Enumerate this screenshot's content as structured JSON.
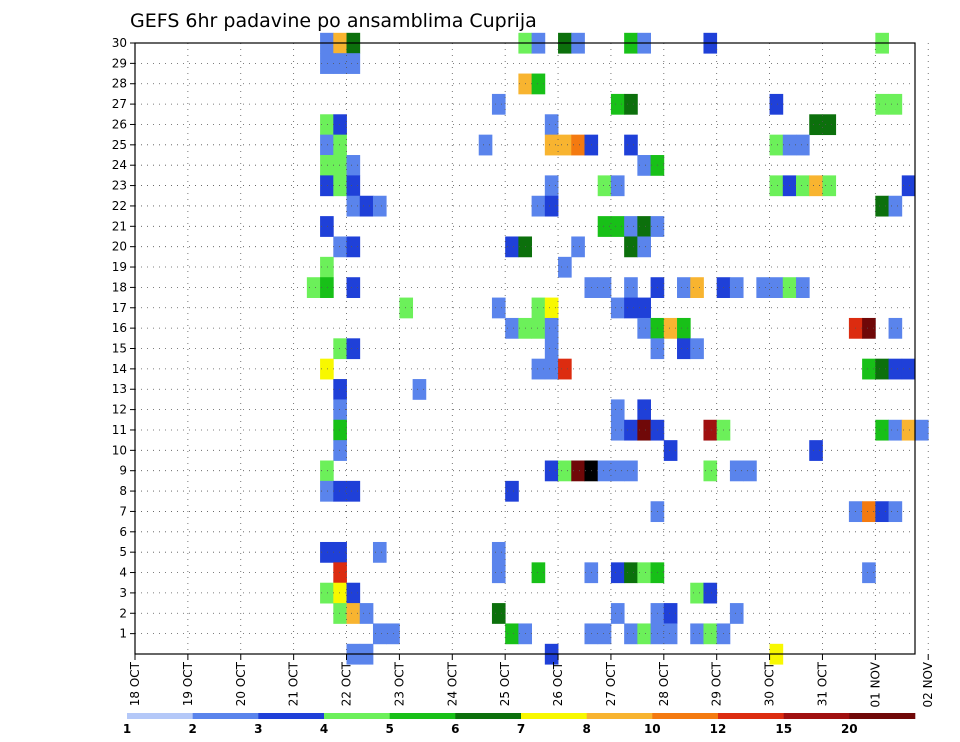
{
  "chart_data": {
    "type": "heatmap",
    "title": "GEFS 6hr padavine po ansamblima Cuprija",
    "x_labels": [
      "18 OCT",
      "19 OCT",
      "20 OCT",
      "21 OCT",
      "22 OCT",
      "23 OCT",
      "24 OCT",
      "25 OCT",
      "26 OCT",
      "27 OCT",
      "28 OCT",
      "29 OCT",
      "30 OCT",
      "31 OCT",
      "01 NOV",
      "02 NOV"
    ],
    "x_step_hours": 6,
    "x_range_steps": [
      0,
      59
    ],
    "y_labels": [
      "1",
      "2",
      "3",
      "4",
      "5",
      "6",
      "7",
      "8",
      "9",
      "10",
      "11",
      "12",
      "13",
      "14",
      "15",
      "16",
      "17",
      "18",
      "19",
      "20",
      "21",
      "22",
      "23",
      "24",
      "25",
      "26",
      "27",
      "28",
      "29",
      "30"
    ],
    "y_range": [
      0,
      30
    ],
    "grid": true,
    "colorbar": {
      "labels": [
        "1",
        "2",
        "3",
        "4",
        "5",
        "6",
        "7",
        "8",
        "10",
        "12",
        "15",
        "20"
      ],
      "colors": [
        "#b4c8f8",
        "#5a84ec",
        "#1f40d8",
        "#6cf05a",
        "#18c018",
        "#0c700c",
        "#f8f800",
        "#f8b430",
        "#f47a10",
        "#dc2c10",
        "#a01010",
        "#700808"
      ]
    },
    "cells": [
      [
        14,
        30,
        1
      ],
      [
        15,
        30,
        7
      ],
      [
        16,
        30,
        5
      ],
      [
        29,
        30,
        3
      ],
      [
        30,
        30,
        1
      ],
      [
        32,
        30,
        5
      ],
      [
        33,
        30,
        1
      ],
      [
        37,
        30,
        4
      ],
      [
        38,
        30,
        1
      ],
      [
        43,
        30,
        2
      ],
      [
        56,
        30,
        3
      ],
      [
        14,
        29,
        1
      ],
      [
        15,
        29,
        1
      ],
      [
        16,
        29,
        1
      ],
      [
        29,
        28,
        7
      ],
      [
        30,
        28,
        4
      ],
      [
        27,
        27,
        1
      ],
      [
        36,
        27,
        4
      ],
      [
        37,
        27,
        5
      ],
      [
        48,
        27,
        2
      ],
      [
        56,
        27,
        3
      ],
      [
        57,
        27,
        3
      ],
      [
        14,
        26,
        3
      ],
      [
        15,
        26,
        2
      ],
      [
        31,
        26,
        1
      ],
      [
        51,
        26,
        5
      ],
      [
        52,
        26,
        5
      ],
      [
        14,
        25,
        1
      ],
      [
        15,
        25,
        3
      ],
      [
        26,
        25,
        1
      ],
      [
        31,
        25,
        7
      ],
      [
        32,
        25,
        7
      ],
      [
        33,
        25,
        8
      ],
      [
        34,
        25,
        2
      ],
      [
        37,
        25,
        2
      ],
      [
        48,
        25,
        3
      ],
      [
        49,
        25,
        1
      ],
      [
        50,
        25,
        1
      ],
      [
        14,
        24,
        3
      ],
      [
        15,
        24,
        3
      ],
      [
        16,
        24,
        1
      ],
      [
        38,
        24,
        1
      ],
      [
        39,
        24,
        4
      ],
      [
        14,
        23,
        2
      ],
      [
        15,
        23,
        3
      ],
      [
        16,
        23,
        2
      ],
      [
        31,
        23,
        1
      ],
      [
        35,
        23,
        3
      ],
      [
        36,
        23,
        1
      ],
      [
        48,
        23,
        3
      ],
      [
        49,
        23,
        2
      ],
      [
        50,
        23,
        3
      ],
      [
        51,
        23,
        7
      ],
      [
        52,
        23,
        3
      ],
      [
        58,
        23,
        2
      ],
      [
        16,
        22,
        1
      ],
      [
        17,
        22,
        2
      ],
      [
        18,
        22,
        1
      ],
      [
        30,
        22,
        1
      ],
      [
        31,
        22,
        2
      ],
      [
        56,
        22,
        5
      ],
      [
        57,
        22,
        1
      ],
      [
        14,
        21,
        2
      ],
      [
        35,
        21,
        4
      ],
      [
        36,
        21,
        4
      ],
      [
        37,
        21,
        1
      ],
      [
        38,
        21,
        5
      ],
      [
        39,
        21,
        1
      ],
      [
        15,
        20,
        1
      ],
      [
        16,
        20,
        2
      ],
      [
        28,
        20,
        2
      ],
      [
        29,
        20,
        5
      ],
      [
        33,
        20,
        1
      ],
      [
        37,
        20,
        5
      ],
      [
        38,
        20,
        1
      ],
      [
        14,
        19,
        3
      ],
      [
        32,
        19,
        1
      ],
      [
        13,
        18,
        3
      ],
      [
        14,
        18,
        4
      ],
      [
        16,
        18,
        2
      ],
      [
        34,
        18,
        1
      ],
      [
        35,
        18,
        1
      ],
      [
        37,
        18,
        1
      ],
      [
        39,
        18,
        2
      ],
      [
        41,
        18,
        1
      ],
      [
        42,
        18,
        7
      ],
      [
        44,
        18,
        2
      ],
      [
        45,
        18,
        1
      ],
      [
        47,
        18,
        1
      ],
      [
        48,
        18,
        1
      ],
      [
        49,
        18,
        3
      ],
      [
        50,
        18,
        1
      ],
      [
        20,
        17,
        3
      ],
      [
        27,
        17,
        1
      ],
      [
        30,
        17,
        3
      ],
      [
        31,
        17,
        6
      ],
      [
        36,
        17,
        1
      ],
      [
        37,
        17,
        2
      ],
      [
        38,
        17,
        2
      ],
      [
        28,
        16,
        1
      ],
      [
        29,
        16,
        3
      ],
      [
        30,
        16,
        3
      ],
      [
        31,
        16,
        1
      ],
      [
        38,
        16,
        1
      ],
      [
        39,
        16,
        4
      ],
      [
        40,
        16,
        7
      ],
      [
        41,
        16,
        4
      ],
      [
        54,
        16,
        9
      ],
      [
        55,
        16,
        11
      ],
      [
        57,
        16,
        1
      ],
      [
        15,
        15,
        3
      ],
      [
        16,
        15,
        2
      ],
      [
        31,
        15,
        1
      ],
      [
        39,
        15,
        1
      ],
      [
        41,
        15,
        2
      ],
      [
        42,
        15,
        1
      ],
      [
        14,
        14,
        6
      ],
      [
        30,
        14,
        1
      ],
      [
        31,
        14,
        1
      ],
      [
        32,
        14,
        9
      ],
      [
        55,
        14,
        4
      ],
      [
        56,
        14,
        5
      ],
      [
        57,
        14,
        2
      ],
      [
        58,
        14,
        2
      ],
      [
        15,
        13,
        2
      ],
      [
        21,
        13,
        1
      ],
      [
        15,
        12,
        1
      ],
      [
        36,
        12,
        1
      ],
      [
        38,
        12,
        2
      ],
      [
        15,
        11,
        4
      ],
      [
        36,
        11,
        1
      ],
      [
        37,
        11,
        2
      ],
      [
        38,
        11,
        11
      ],
      [
        39,
        11,
        2
      ],
      [
        43,
        11,
        10
      ],
      [
        44,
        11,
        3
      ],
      [
        56,
        11,
        4
      ],
      [
        57,
        11,
        1
      ],
      [
        58,
        11,
        7
      ],
      [
        59,
        11,
        1
      ],
      [
        15,
        10,
        1
      ],
      [
        40,
        10,
        2
      ],
      [
        51,
        10,
        2
      ],
      [
        14,
        9,
        3
      ],
      [
        31,
        9,
        2
      ],
      [
        32,
        9,
        3
      ],
      [
        33,
        9,
        11
      ],
      [
        34,
        9,
        12
      ],
      [
        35,
        9,
        1
      ],
      [
        36,
        9,
        1
      ],
      [
        37,
        9,
        1
      ],
      [
        43,
        9,
        3
      ],
      [
        45,
        9,
        1
      ],
      [
        46,
        9,
        1
      ],
      [
        14,
        8,
        1
      ],
      [
        15,
        8,
        2
      ],
      [
        16,
        8,
        2
      ],
      [
        28,
        8,
        2
      ],
      [
        39,
        7,
        1
      ],
      [
        54,
        7,
        1
      ],
      [
        55,
        7,
        8
      ],
      [
        56,
        7,
        2
      ],
      [
        57,
        7,
        1
      ],
      [
        14,
        5,
        2
      ],
      [
        15,
        5,
        2
      ],
      [
        18,
        5,
        1
      ],
      [
        27,
        5,
        1
      ],
      [
        15,
        4,
        9
      ],
      [
        27,
        4,
        1
      ],
      [
        30,
        4,
        4
      ],
      [
        34,
        4,
        1
      ],
      [
        36,
        4,
        2
      ],
      [
        37,
        4,
        5
      ],
      [
        38,
        4,
        3
      ],
      [
        39,
        4,
        4
      ],
      [
        55,
        4,
        1
      ],
      [
        14,
        3,
        3
      ],
      [
        15,
        3,
        6
      ],
      [
        16,
        3,
        2
      ],
      [
        42,
        3,
        3
      ],
      [
        43,
        3,
        2
      ],
      [
        15,
        2,
        3
      ],
      [
        16,
        2,
        7
      ],
      [
        17,
        2,
        1
      ],
      [
        27,
        2,
        5
      ],
      [
        36,
        2,
        1
      ],
      [
        39,
        2,
        1
      ],
      [
        40,
        2,
        2
      ],
      [
        45,
        2,
        1
      ],
      [
        18,
        1,
        1
      ],
      [
        19,
        1,
        1
      ],
      [
        28,
        1,
        4
      ],
      [
        29,
        1,
        1
      ],
      [
        34,
        1,
        1
      ],
      [
        35,
        1,
        1
      ],
      [
        37,
        1,
        1
      ],
      [
        38,
        1,
        3
      ],
      [
        39,
        1,
        1
      ],
      [
        40,
        1,
        1
      ],
      [
        42,
        1,
        1
      ],
      [
        43,
        1,
        3
      ],
      [
        44,
        1,
        1
      ],
      [
        16,
        0,
        1
      ],
      [
        17,
        0,
        1
      ],
      [
        31,
        0,
        2
      ],
      [
        48,
        0,
        6
      ]
    ]
  }
}
